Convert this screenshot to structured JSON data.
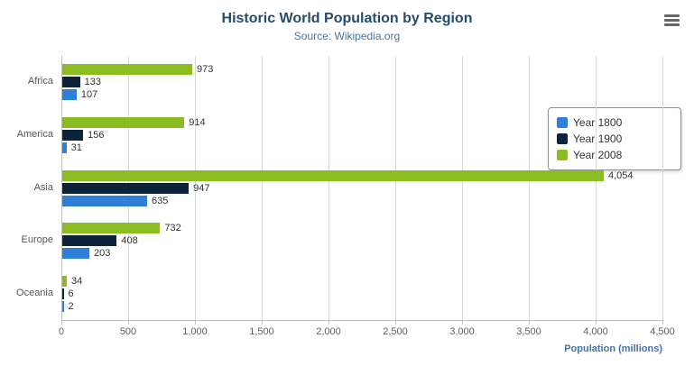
{
  "header": {
    "title": "Historic World Population by Region",
    "subtitle": "Source: Wikipedia.org"
  },
  "menu": {
    "icon": "hamburger-menu-icon"
  },
  "colors": {
    "title": "#274b6d",
    "subtitle": "#4d759e",
    "axis_title": "#4572a7",
    "gridline": "#d8d8d8",
    "axis_line": "#c0c0c0",
    "year_1800": "#2f7ed8",
    "year_1900": "#0d233a",
    "year_2008": "#8bbc21"
  },
  "chart_data": {
    "type": "bar",
    "orientation": "horizontal",
    "title": "Historic World Population by Region",
    "subtitle": "Source: Wikipedia.org",
    "categories": [
      "Africa",
      "America",
      "Asia",
      "Europe",
      "Oceania"
    ],
    "series": [
      {
        "name": "Year 1800",
        "color": "#2f7ed8",
        "values": [
          107,
          31,
          635,
          203,
          2
        ]
      },
      {
        "name": "Year 1900",
        "color": "#0d233a",
        "values": [
          133,
          156,
          947,
          408,
          6
        ]
      },
      {
        "name": "Year 2008",
        "color": "#8bbc21",
        "values": [
          973,
          914,
          4054,
          732,
          34
        ]
      }
    ],
    "bar_order_top_to_bottom": [
      "Year 2008",
      "Year 1900",
      "Year 1800"
    ],
    "xlabel": "Population (millions)",
    "ylabel": "",
    "xlim": [
      0,
      4500
    ],
    "xticks": [
      0,
      500,
      1000,
      1500,
      2000,
      2500,
      3000,
      3500,
      4000,
      4500
    ],
    "xtick_labels": [
      "0",
      "500",
      "1,000",
      "1,500",
      "2,000",
      "2,500",
      "3,000",
      "3,500",
      "4,000",
      "4,500"
    ],
    "grid": true,
    "data_labels": true,
    "legend_position": "right-middle"
  }
}
